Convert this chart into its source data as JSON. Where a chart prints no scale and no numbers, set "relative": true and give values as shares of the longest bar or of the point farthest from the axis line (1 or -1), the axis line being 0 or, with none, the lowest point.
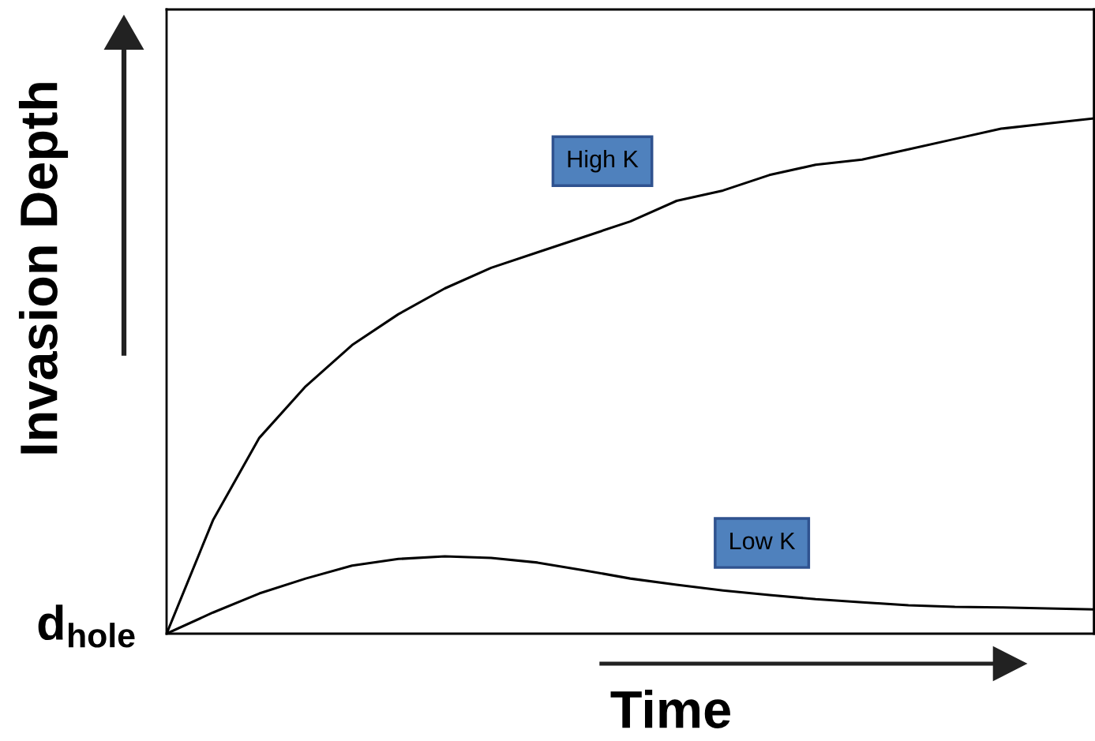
{
  "chart_data": {
    "type": "line",
    "relative": true,
    "xlabel": "Time",
    "ylabel": "Invasion Depth",
    "annotations": [
      "d$_{hole}$"
    ],
    "categories": [
      null,
      null,
      null,
      null,
      null,
      null,
      null,
      null,
      null,
      null,
      null,
      null,
      null,
      null,
      null,
      null,
      null,
      null,
      null,
      null,
      null
    ],
    "series": [
      {
        "name": "High K",
        "color": "#000000",
        "values": [
          0,
          0.22,
          0.38,
          0.48,
          0.56,
          0.62,
          0.67,
          0.71,
          0.74,
          0.77,
          0.8,
          0.84,
          0.86,
          0.89,
          0.91,
          0.92,
          0.94,
          0.96,
          0.98,
          0.99,
          1
        ]
      },
      {
        "name": "Low K",
        "color": "#000000",
        "values": [
          0,
          0.041,
          0.078,
          0.107,
          0.132,
          0.145,
          0.15,
          0.147,
          0.138,
          0.123,
          0.107,
          0.095,
          0.084,
          0.075,
          0.067,
          0.061,
          0.055,
          0.052,
          0.051,
          0.049,
          0.047
        ]
      }
    ],
    "line_style": "solid",
    "grid": false,
    "legend": false
  }
}
